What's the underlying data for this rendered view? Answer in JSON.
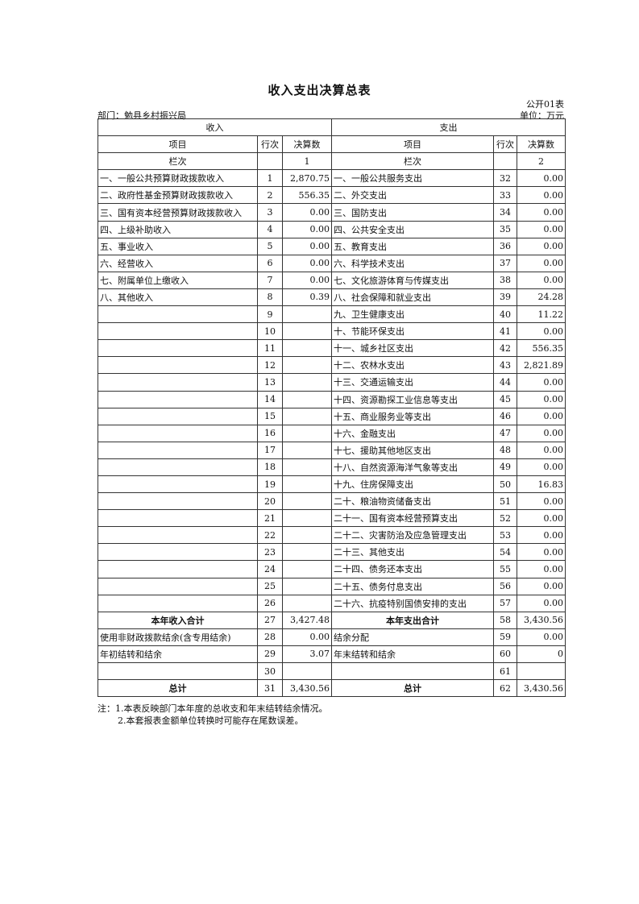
{
  "title": "收入支出决算总表",
  "form_code": "公开01表",
  "department": "部门：勉县乡村振兴局",
  "unit": "单位：万元",
  "headers": {
    "income": "收入",
    "expense": "支出",
    "item": "项目",
    "row_no": "行次",
    "amount": "决算数",
    "column_label": "栏次",
    "income_col": "1",
    "expense_col": "2"
  },
  "rows": [
    [
      "一、一般公共预算财政拨款收入",
      "1",
      "2,870.75",
      "一、一般公共服务支出",
      "32",
      "0.00"
    ],
    [
      "二、政府性基金预算财政拨款收入",
      "2",
      "556.35",
      "二、外交支出",
      "33",
      "0.00"
    ],
    [
      "三、国有资本经营预算财政拨款收入",
      "3",
      "0.00",
      "三、国防支出",
      "34",
      "0.00"
    ],
    [
      "四、上级补助收入",
      "4",
      "0.00",
      "四、公共安全支出",
      "35",
      "0.00"
    ],
    [
      "五、事业收入",
      "5",
      "0.00",
      "五、教育支出",
      "36",
      "0.00"
    ],
    [
      "六、经营收入",
      "6",
      "0.00",
      "六、科学技术支出",
      "37",
      "0.00"
    ],
    [
      "七、附属单位上缴收入",
      "7",
      "0.00",
      "七、文化旅游体育与传媒支出",
      "38",
      "0.00"
    ],
    [
      "八、其他收入",
      "8",
      "0.39",
      "八、社会保障和就业支出",
      "39",
      "24.28"
    ],
    [
      "",
      "9",
      "",
      "九、卫生健康支出",
      "40",
      "11.22"
    ],
    [
      "",
      "10",
      "",
      "十、节能环保支出",
      "41",
      "0.00"
    ],
    [
      "",
      "11",
      "",
      "十一、城乡社区支出",
      "42",
      "556.35"
    ],
    [
      "",
      "12",
      "",
      "十二、农林水支出",
      "43",
      "2,821.89"
    ],
    [
      "",
      "13",
      "",
      "十三、交通运输支出",
      "44",
      "0.00"
    ],
    [
      "",
      "14",
      "",
      "十四、资源勘探工业信息等支出",
      "45",
      "0.00"
    ],
    [
      "",
      "15",
      "",
      "十五、商业服务业等支出",
      "46",
      "0.00"
    ],
    [
      "",
      "16",
      "",
      "十六、金融支出",
      "47",
      "0.00"
    ],
    [
      "",
      "17",
      "",
      "十七、援助其他地区支出",
      "48",
      "0.00"
    ],
    [
      "",
      "18",
      "",
      "十八、自然资源海洋气象等支出",
      "49",
      "0.00"
    ],
    [
      "",
      "19",
      "",
      "十九、住房保障支出",
      "50",
      "16.83"
    ],
    [
      "",
      "20",
      "",
      "二十、粮油物资储备支出",
      "51",
      "0.00"
    ],
    [
      "",
      "21",
      "",
      "二十一、国有资本经营预算支出",
      "52",
      "0.00"
    ],
    [
      "",
      "22",
      "",
      "二十二、灾害防治及应急管理支出",
      "53",
      "0.00"
    ],
    [
      "",
      "23",
      "",
      "二十三、其他支出",
      "54",
      "0.00"
    ],
    [
      "",
      "24",
      "",
      "二十四、债务还本支出",
      "55",
      "0.00"
    ],
    [
      "",
      "25",
      "",
      "二十五、债务付息支出",
      "56",
      "0.00"
    ],
    [
      "",
      "26",
      "",
      "二十六、抗疫特别国债安排的支出",
      "57",
      "0.00"
    ],
    [
      "本年收入合计",
      "27",
      "3,427.48",
      "本年支出合计",
      "58",
      "3,430.56",
      "bold"
    ],
    [
      "使用非财政拨款结余(含专用结余)",
      "28",
      "0.00",
      "结余分配",
      "59",
      "0.00"
    ],
    [
      "年初结转和结余",
      "29",
      "3.07",
      "年末结转和结余",
      "60",
      "0"
    ],
    [
      "",
      "30",
      "",
      "",
      "61",
      ""
    ],
    [
      "总计",
      "31",
      "3,430.56",
      "总计",
      "62",
      "3,430.56",
      "bold"
    ]
  ],
  "notes": [
    "注：1.本表反映部门本年度的总收支和年末结转结余情况。",
    "2.本套报表金额单位转换时可能存在尾数误差。"
  ]
}
